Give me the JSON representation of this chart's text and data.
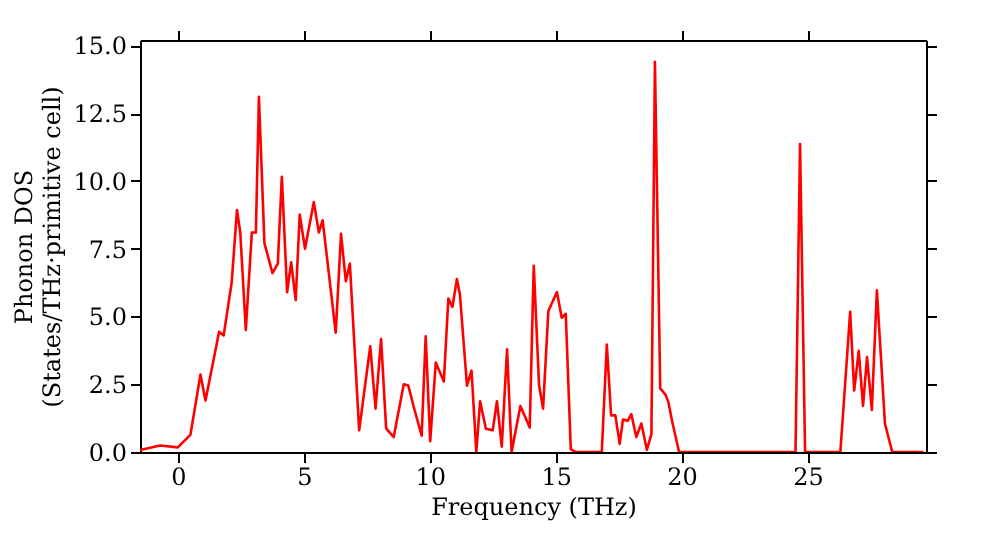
{
  "chart_data": {
    "type": "line",
    "xlabel": "Frequency (THz)",
    "ylabel": "Phonon DOS\n(States/THz·primitive cell)",
    "xlim": [
      -1.5,
      29.7
    ],
    "ylim": [
      0,
      15.2
    ],
    "xticks": [
      0,
      5,
      10,
      15,
      20,
      25
    ],
    "yticks": [
      {
        "value": 0,
        "label": "0.0"
      },
      {
        "value": 2.5,
        "label": "2.5"
      },
      {
        "value": 5,
        "label": "5.0"
      },
      {
        "value": 7.5,
        "label": "7.5"
      },
      {
        "value": 10,
        "label": "10.0"
      },
      {
        "value": 12.5,
        "label": "12.5"
      },
      {
        "value": 15,
        "label": "15.0"
      }
    ],
    "grid": false,
    "marker": "none",
    "line_style": "solid",
    "series": [
      {
        "color": "#ff0000",
        "x": [
          -1.5,
          -0.7,
          0,
          0.5,
          0.9,
          1.1,
          1.64,
          1.82,
          2.14,
          2.35,
          2.48,
          2.7,
          2.94,
          3.1,
          3.22,
          3.44,
          3.76,
          3.97,
          4.13,
          4.34,
          4.5,
          4.68,
          4.84,
          5.05,
          5.4,
          5.6,
          5.75,
          6.27,
          6.48,
          6.67,
          6.83,
          7.2,
          7.64,
          7.85,
          8.07,
          8.27,
          8.57,
          8.97,
          9.15,
          9.37,
          9.68,
          9.84,
          10.02,
          10.24,
          10.56,
          10.74,
          10.9,
          11.08,
          11.2,
          11.48,
          11.66,
          11.85,
          12.0,
          12.23,
          12.5,
          12.67,
          12.86,
          13.07,
          13.25,
          13.6,
          13.97,
          14.13,
          14.34,
          14.5,
          14.71,
          15.05,
          15.24,
          15.4,
          15.6,
          15.8,
          16.83,
          17.03,
          17.2,
          17.37,
          17.54,
          17.67,
          17.86,
          18.0,
          18.2,
          18.4,
          18.62,
          18.8,
          18.94,
          19.15,
          19.37,
          19.47,
          19.63,
          19.9,
          24.52,
          24.7,
          24.9,
          26.3,
          26.69,
          26.85,
          27.03,
          27.2,
          27.36,
          27.55,
          27.75,
          28.07,
          28.36,
          29.6
        ],
        "values": [
          0.07,
          0.24,
          0.17,
          0.63,
          2.86,
          1.9,
          4.44,
          4.3,
          6.26,
          8.93,
          8.1,
          4.5,
          8.1,
          8.1,
          13.1,
          7.7,
          6.6,
          6.95,
          10.15,
          5.9,
          7.0,
          5.6,
          8.76,
          7.5,
          9.22,
          8.1,
          8.55,
          4.4,
          8.05,
          6.3,
          6.95,
          0.8,
          3.9,
          1.6,
          4.17,
          0.87,
          0.55,
          2.5,
          2.45,
          1.65,
          0.6,
          4.27,
          0.4,
          3.3,
          2.6,
          5.66,
          5.35,
          6.38,
          5.8,
          2.45,
          3.0,
          0,
          1.87,
          0.86,
          0.8,
          1.87,
          0.2,
          3.79,
          0,
          1.7,
          0.9,
          6.87,
          2.46,
          1.6,
          5.2,
          5.9,
          4.95,
          5.1,
          0.1,
          0,
          0,
          3.96,
          1.35,
          1.35,
          0.3,
          1.2,
          1.15,
          1.4,
          0.55,
          1.05,
          0.08,
          0.66,
          14.4,
          2.35,
          2.1,
          1.85,
          1.1,
          0,
          0,
          11.36,
          0,
          0,
          5.17,
          2.27,
          3.73,
          1.7,
          3.5,
          1.55,
          5.97,
          1.05,
          0,
          0
        ]
      }
    ]
  }
}
